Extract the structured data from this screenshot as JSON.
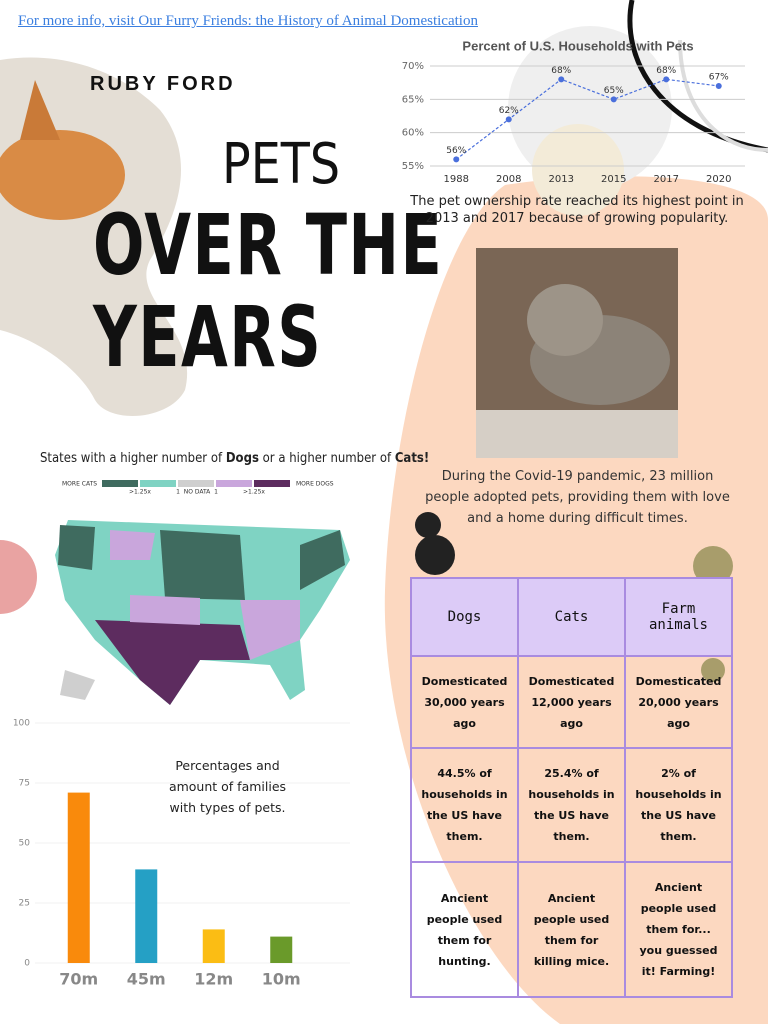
{
  "link": "For more info, visit Our Furry Friends: the History of Animal Domestication",
  "author": "RUBY FORD",
  "title": {
    "line1": "PETS",
    "line2": "OVER THE",
    "line3": "YEARS"
  },
  "chart_data": [
    {
      "type": "line",
      "title": "Percent of U.S. Households with Pets",
      "categories": [
        "1988",
        "2008",
        "2013",
        "2015",
        "2017",
        "2020"
      ],
      "values": [
        56,
        62,
        68,
        65,
        68,
        67
      ],
      "value_labels": [
        "56%",
        "62%",
        "68%",
        "65%",
        "68%",
        "67%"
      ],
      "color": "#4a6fdc",
      "ylim": [
        55,
        70
      ],
      "yticks": [
        {
          "value": 55,
          "label": "55%"
        },
        {
          "value": 60,
          "label": "60%"
        },
        {
          "value": 65,
          "label": "65%"
        },
        {
          "value": 70,
          "label": "70%"
        }
      ],
      "grid": true
    },
    {
      "type": "bar",
      "title": "Percentages and amount of families with types of pets.",
      "categories": [
        "70m",
        "45m",
        "12m",
        "10m"
      ],
      "values": [
        71,
        39,
        14,
        11
      ],
      "colors": [
        "#f98a0c",
        "#25a0c5",
        "#fbbd14",
        "#6a9a2a"
      ],
      "ylim": [
        0,
        100
      ],
      "yticks": [
        0,
        25,
        50,
        75,
        100
      ],
      "grid": true
    }
  ],
  "line_caption": "The pet ownership rate reached its highest point in 2013 and 2017 because of growing popularity.",
  "map": {
    "title_parts": [
      "States with a higher number of ",
      "Dogs",
      " or a higher number of ",
      "Cats!"
    ],
    "legend": [
      "MORE CATS",
      ">1.25x",
      "1",
      "NO DATA",
      "1",
      ">1.25x",
      "MORE DOGS"
    ],
    "colors": [
      "#3f6b5f",
      "#7fd3c3",
      "#cfcfcf",
      "#c9a6dc",
      "#5d2c5f"
    ]
  },
  "covid_caption": "During the Covid-19 pandemic, 23 million people adopted pets, providing them with love and a home during difficult times.",
  "table": {
    "header": [
      "Dogs",
      "Cats",
      "Farm animals"
    ],
    "rows": [
      [
        "Domesticated 30,000 years ago",
        "Domesticated 12,000 years ago",
        "Domesticated 20,000 years ago"
      ],
      [
        "44.5% of households in the US have them.",
        "25.4% of households in the US have them.",
        "2% of households in the US have them."
      ],
      [
        "Ancient people used them for hunting.",
        "Ancient people used them for killing mice.",
        "Ancient people used them for... you guessed it! Farming!"
      ]
    ]
  }
}
